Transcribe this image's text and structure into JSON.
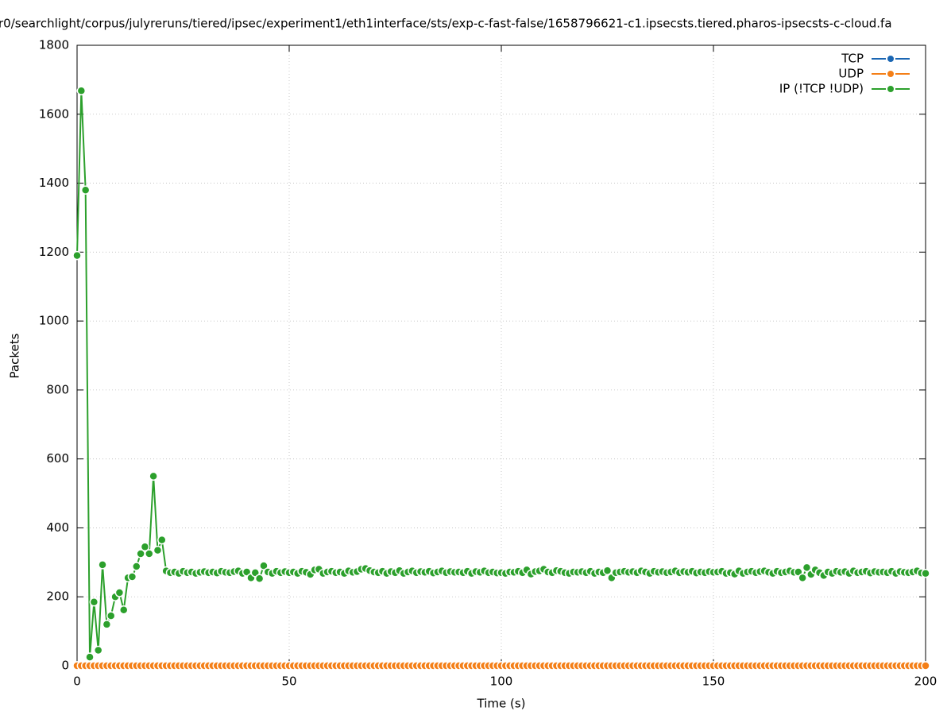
{
  "chart_data": {
    "type": "line",
    "title": "r0/searchlight/corpus/julyreruns/tiered/ipsec/experiment1/eth1interface/sts/exp-c-fast-false/1658796621-c1.ipsecsts.tiered.pharos-ipsecsts-c-cloud.fa",
    "x_label": "Time (s)",
    "y_label": "Packets",
    "xlim": [
      0,
      200
    ],
    "xticks": [
      0,
      50,
      100,
      150,
      200
    ],
    "ylim": [
      0,
      1800
    ],
    "yticks": [
      0,
      200,
      400,
      600,
      800,
      1000,
      1200,
      1400,
      1600,
      1800
    ],
    "grid": true,
    "legend": "top-right",
    "x": [
      0,
      1,
      2,
      3,
      4,
      5,
      6,
      7,
      8,
      9,
      10,
      11,
      12,
      13,
      14,
      15,
      16,
      17,
      18,
      19,
      20,
      21,
      22,
      23,
      24,
      25,
      26,
      27,
      28,
      29,
      30,
      31,
      32,
      33,
      34,
      35,
      36,
      37,
      38,
      39,
      40,
      41,
      42,
      43,
      44,
      45,
      46,
      47,
      48,
      49,
      50,
      51,
      52,
      53,
      54,
      55,
      56,
      57,
      58,
      59,
      60,
      61,
      62,
      63,
      64,
      65,
      66,
      67,
      68,
      69,
      70,
      71,
      72,
      73,
      74,
      75,
      76,
      77,
      78,
      79,
      80,
      81,
      82,
      83,
      84,
      85,
      86,
      87,
      88,
      89,
      90,
      91,
      92,
      93,
      94,
      95,
      96,
      97,
      98,
      99,
      100,
      101,
      102,
      103,
      104,
      105,
      106,
      107,
      108,
      109,
      110,
      111,
      112,
      113,
      114,
      115,
      116,
      117,
      118,
      119,
      120,
      121,
      122,
      123,
      124,
      125,
      126,
      127,
      128,
      129,
      130,
      131,
      132,
      133,
      134,
      135,
      136,
      137,
      138,
      139,
      140,
      141,
      142,
      143,
      144,
      145,
      146,
      147,
      148,
      149,
      150,
      151,
      152,
      153,
      154,
      155,
      156,
      157,
      158,
      159,
      160,
      161,
      162,
      163,
      164,
      165,
      166,
      167,
      168,
      169,
      170,
      171,
      172,
      173,
      174,
      175,
      176,
      177,
      178,
      179,
      180,
      181,
      182,
      183,
      184,
      185,
      186,
      187,
      188,
      189,
      190,
      191,
      192,
      193,
      194,
      195,
      196,
      197,
      198,
      199,
      200
    ],
    "series": [
      {
        "name": "TCP",
        "color": "#1a66b3",
        "values": [
          0,
          0,
          0,
          0,
          0,
          0,
          0,
          0,
          0,
          0,
          0,
          0,
          0,
          0,
          0,
          0,
          0,
          0,
          0,
          0,
          0,
          0,
          0,
          0,
          0,
          0,
          0,
          0,
          0,
          0,
          0,
          0,
          0,
          0,
          0,
          0,
          0,
          0,
          0,
          0,
          0,
          0,
          0,
          0,
          0,
          0,
          0,
          0,
          0,
          0,
          0,
          0,
          0,
          0,
          0,
          0,
          0,
          0,
          0,
          0,
          0,
          0,
          0,
          0,
          0,
          0,
          0,
          0,
          0,
          0,
          0,
          0,
          0,
          0,
          0,
          0,
          0,
          0,
          0,
          0,
          0,
          0,
          0,
          0,
          0,
          0,
          0,
          0,
          0,
          0,
          0,
          0,
          0,
          0,
          0,
          0,
          0,
          0,
          0,
          0,
          0,
          0,
          0,
          0,
          0,
          0,
          0,
          0,
          0,
          0,
          0,
          0,
          0,
          0,
          0,
          0,
          0,
          0,
          0,
          0,
          0,
          0,
          0,
          0,
          0,
          0,
          0,
          0,
          0,
          0,
          0,
          0,
          0,
          0,
          0,
          0,
          0,
          0,
          0,
          0,
          0,
          0,
          0,
          0,
          0,
          0,
          0,
          0,
          0,
          0,
          0,
          0,
          0,
          0,
          0,
          0,
          0,
          0,
          0,
          0,
          0,
          0,
          0,
          0,
          0,
          0,
          0,
          0,
          0,
          0,
          0,
          0,
          0,
          0,
          0,
          0,
          0,
          0,
          0,
          0,
          0,
          0,
          0,
          0,
          0,
          0,
          0,
          0,
          0,
          0,
          0,
          0,
          0,
          0,
          0,
          0,
          0,
          0,
          0,
          0,
          0
        ]
      },
      {
        "name": "UDP",
        "color": "#f47f17",
        "values": [
          0,
          0,
          0,
          0,
          0,
          0,
          0,
          0,
          0,
          0,
          0,
          0,
          0,
          0,
          0,
          0,
          0,
          0,
          0,
          0,
          0,
          0,
          0,
          0,
          0,
          0,
          0,
          0,
          0,
          0,
          0,
          0,
          0,
          0,
          0,
          0,
          0,
          0,
          0,
          0,
          0,
          0,
          0,
          0,
          0,
          0,
          0,
          0,
          0,
          0,
          0,
          0,
          0,
          0,
          0,
          0,
          0,
          0,
          0,
          0,
          0,
          0,
          0,
          0,
          0,
          0,
          0,
          0,
          0,
          0,
          0,
          0,
          0,
          0,
          0,
          0,
          0,
          0,
          0,
          0,
          0,
          0,
          0,
          0,
          0,
          0,
          0,
          0,
          0,
          0,
          0,
          0,
          0,
          0,
          0,
          0,
          0,
          0,
          0,
          0,
          0,
          0,
          0,
          0,
          0,
          0,
          0,
          0,
          0,
          0,
          0,
          0,
          0,
          0,
          0,
          0,
          0,
          0,
          0,
          0,
          0,
          0,
          0,
          0,
          0,
          0,
          0,
          0,
          0,
          0,
          0,
          0,
          0,
          0,
          0,
          0,
          0,
          0,
          0,
          0,
          0,
          0,
          0,
          0,
          0,
          0,
          0,
          0,
          0,
          0,
          0,
          0,
          0,
          0,
          0,
          0,
          0,
          0,
          0,
          0,
          0,
          0,
          0,
          0,
          0,
          0,
          0,
          0,
          0,
          0,
          0,
          0,
          0,
          0,
          0,
          0,
          0,
          0,
          0,
          0,
          0,
          0,
          0,
          0,
          0,
          0,
          0,
          0,
          0,
          0,
          0,
          0,
          0,
          0,
          0,
          0,
          0,
          0,
          0,
          0,
          0
        ]
      },
      {
        "name": "IP (!TCP  !UDP)",
        "color": "#2ca02c",
        "values": [
          1190,
          1668,
          1380,
          25,
          185,
          45,
          293,
          120,
          145,
          200,
          212,
          162,
          255,
          258,
          288,
          325,
          345,
          325,
          550,
          335,
          365,
          275,
          270,
          272,
          268,
          274,
          270,
          272,
          268,
          271,
          273,
          270,
          272,
          269,
          274,
          271,
          270,
          273,
          275,
          268,
          272,
          255,
          270,
          253,
          290,
          272,
          268,
          274,
          270,
          273,
          270,
          272,
          268,
          274,
          271,
          265,
          278,
          280,
          268,
          272,
          274,
          270,
          272,
          268,
          275,
          271,
          273,
          280,
          282,
          276,
          272,
          270,
          274,
          268,
          273,
          270,
          276,
          268,
          272,
          275,
          270,
          273,
          271,
          274,
          269,
          272,
          275,
          270,
          273,
          271,
          272,
          270,
          274,
          268,
          273,
          271,
          275,
          270,
          272,
          269,
          270,
          268,
          272,
          271,
          274,
          270,
          278,
          266,
          273,
          275,
          280,
          272,
          270,
          276,
          274,
          270,
          268,
          272,
          271,
          273,
          270,
          274,
          268,
          272,
          270,
          276,
          255,
          270,
          272,
          274,
          271,
          273,
          270,
          275,
          272,
          268,
          274,
          271,
          273,
          270,
          272,
          275,
          270,
          273,
          271,
          274,
          269,
          272,
          270,
          273,
          271,
          272,
          274,
          268,
          270,
          266,
          275,
          268,
          272,
          274,
          270,
          273,
          275,
          271,
          268,
          274,
          270,
          272,
          275,
          271,
          272,
          255,
          285,
          265,
          278,
          270,
          262,
          272,
          268,
          274,
          271,
          273,
          268,
          275,
          270,
          272,
          274,
          269,
          273,
          271,
          272,
          270,
          274,
          268,
          273,
          271,
          270,
          272,
          275,
          269,
          268
        ]
      }
    ]
  }
}
